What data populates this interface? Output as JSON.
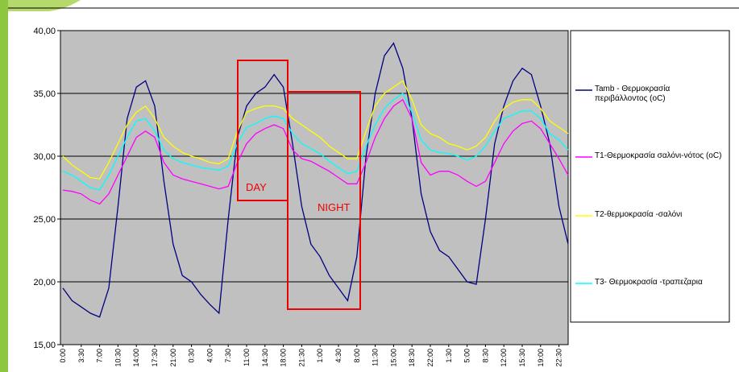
{
  "chart_data": {
    "type": "line",
    "annotations": [
      "DAY",
      "NIGHT"
    ],
    "categories": [
      "0:00",
      null,
      "3:30",
      null,
      "7:00",
      null,
      "10:30",
      null,
      "14:00",
      null,
      "17:30",
      null,
      "21:00",
      null,
      "0:30",
      null,
      "4:00",
      null,
      "7:30",
      null,
      "11:00",
      null,
      "14:30",
      null,
      "18:00",
      null,
      "21:30",
      null,
      "1:00",
      null,
      "4:30",
      null,
      "8:00",
      null,
      "11:30",
      null,
      "15:00",
      null,
      "18:30",
      null,
      "22:00",
      null,
      "1:30",
      null,
      "5:00",
      null,
      "8:30",
      null,
      "12:00",
      null,
      "15:30",
      null,
      "19:00",
      null,
      "22:30",
      null
    ],
    "series": [
      {
        "name": "Tamb - Θερμοκρασία περιβάλλοντος (οC)",
        "color": "#000080",
        "values": [
          19.5,
          18.5,
          18.0,
          17.5,
          17.2,
          19.5,
          26.0,
          33.0,
          35.5,
          36.0,
          34.0,
          28.0,
          23.0,
          20.5,
          20.0,
          19.0,
          18.2,
          17.5,
          25.0,
          31.5,
          34.0,
          35.0,
          35.5,
          36.5,
          35.5,
          31.0,
          26.0,
          23.0,
          22.0,
          20.5,
          19.5,
          18.5,
          22.0,
          30.0,
          35.0,
          38.0,
          39.0,
          37.0,
          33.0,
          27.0,
          24.0,
          22.5,
          22.0,
          21.0,
          20.0,
          19.8,
          25.0,
          31.0,
          34.0,
          36.0,
          37.0,
          36.5,
          34.0,
          31.0,
          26.0,
          23.0
        ]
      },
      {
        "name": "T1-Θερμοκρασία σαλόνι-νότος (oC)",
        "color": "#ff00ff",
        "values": [
          27.3,
          27.2,
          27.0,
          26.5,
          26.2,
          27.0,
          28.5,
          30.0,
          31.5,
          32.0,
          31.5,
          29.5,
          28.5,
          28.2,
          28.0,
          27.8,
          27.6,
          27.4,
          27.6,
          29.5,
          31.0,
          31.8,
          32.2,
          32.5,
          32.2,
          30.5,
          29.8,
          29.6,
          29.2,
          28.8,
          28.3,
          27.8,
          27.8,
          29.5,
          31.5,
          33.0,
          34.0,
          34.5,
          33.0,
          29.5,
          28.5,
          28.8,
          28.8,
          28.5,
          28.0,
          27.6,
          28.0,
          29.5,
          31.0,
          32.0,
          32.6,
          32.8,
          32.2,
          31.0,
          29.8,
          28.5
        ]
      },
      {
        "name": "T2-θερμοκρασία -σαλόνι",
        "color": "#ffff00",
        "values": [
          30.0,
          29.3,
          28.8,
          28.3,
          28.2,
          29.5,
          31.0,
          32.5,
          33.5,
          34.0,
          33.0,
          31.5,
          30.8,
          30.3,
          30.0,
          29.8,
          29.5,
          29.4,
          29.8,
          32.0,
          33.5,
          33.8,
          34.0,
          34.0,
          33.8,
          33.0,
          32.5,
          32.0,
          31.5,
          30.8,
          30.3,
          29.8,
          29.8,
          32.0,
          34.0,
          35.0,
          35.5,
          36.0,
          34.5,
          32.5,
          31.8,
          31.5,
          31.0,
          30.8,
          30.5,
          30.8,
          31.5,
          32.8,
          33.8,
          34.3,
          34.5,
          34.5,
          33.8,
          32.8,
          32.3,
          31.8
        ]
      },
      {
        "name": "T3- Θερμοκρασία -τραπεζαρια",
        "color": "#00ffff",
        "values": [
          28.8,
          28.5,
          28.0,
          27.5,
          27.3,
          28.5,
          30.0,
          31.5,
          32.8,
          33.0,
          32.0,
          30.5,
          29.8,
          29.5,
          29.3,
          29.1,
          29.0,
          28.9,
          29.2,
          31.0,
          32.3,
          32.6,
          33.0,
          33.2,
          33.0,
          31.8,
          31.0,
          30.6,
          30.2,
          29.6,
          29.1,
          28.6,
          28.8,
          30.8,
          32.5,
          33.8,
          34.5,
          35.0,
          33.5,
          31.3,
          30.5,
          30.3,
          30.2,
          30.0,
          29.7,
          30.0,
          30.8,
          32.0,
          33.0,
          33.3,
          33.6,
          33.6,
          33.0,
          31.8,
          31.3,
          30.5
        ]
      }
    ],
    "ylim": [
      15,
      40
    ],
    "yticks": [
      {
        "value": 15,
        "label": "15,00"
      },
      {
        "value": 20,
        "label": "20,00"
      },
      {
        "value": 25,
        "label": "25,00"
      },
      {
        "value": 30,
        "label": "30,00"
      },
      {
        "value": 35,
        "label": "35,00"
      },
      {
        "value": 40,
        "label": "40,00"
      }
    ],
    "grid": true,
    "legend": "right",
    "plot_background": "#c0c0c0"
  }
}
